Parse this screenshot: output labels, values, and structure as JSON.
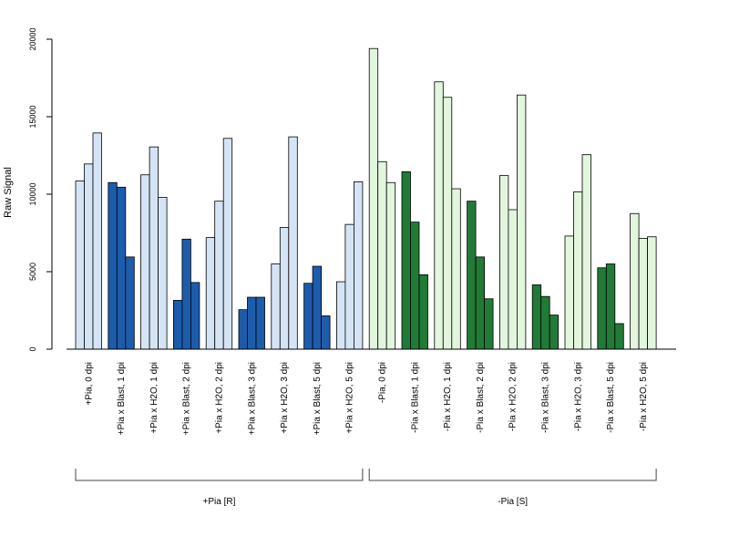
{
  "chart_data": {
    "type": "bar",
    "ylabel": "Raw Signal",
    "ylim": [
      0,
      20000
    ],
    "yticks": [
      "0",
      "5000",
      "10000",
      "15000",
      "20000"
    ],
    "categories": [
      "+Pia, 0 dpi",
      "+Pia x Blast, 1 dpi",
      "+Pia x H2O, 1 dpi",
      "+Pia x Blast, 2 dpi",
      "+Pia x H2O, 2 dpi",
      "+Pia x Blast, 3 dpi",
      "+Pia x H2O, 3 dpi",
      "+Pia x Blast, 5 dpi",
      "+Pia x H2O, 5 dpi",
      "-Pia, 0 dpi",
      "-Pia x Blast, 1 dpi",
      "-Pia x H2O, 1 dpi",
      "-Pia x Blast, 2 dpi",
      "-Pia x H2O, 2 dpi",
      "-Pia x Blast, 3 dpi",
      "-Pia x H2O, 3 dpi",
      "-Pia x Blast, 5 dpi",
      "-Pia x H2O, 5 dpi"
    ],
    "replicates": [
      [
        10850,
        11950,
        13950
      ],
      [
        10750,
        10450,
        5950
      ],
      [
        11250,
        13050,
        9800
      ],
      [
        3150,
        7100,
        4300
      ],
      [
        7200,
        9550,
        13600
      ],
      [
        2550,
        3350,
        3350
      ],
      [
        5500,
        7850,
        13700
      ],
      [
        4250,
        5350,
        2150
      ],
      [
        4350,
        8050,
        10800
      ],
      [
        19400,
        12100,
        10750
      ],
      [
        11450,
        8200,
        4800
      ],
      [
        17250,
        16250,
        10350
      ],
      [
        9550,
        5950,
        3250
      ],
      [
        11200,
        9000,
        16400
      ],
      [
        4150,
        3400,
        2200
      ],
      [
        7300,
        10150,
        12550
      ],
      [
        5250,
        5500,
        1650
      ],
      [
        8750,
        7150,
        7250
      ]
    ],
    "bar_colors": [
      "#d5e4f5",
      "#1d5cab",
      "#d5e4f5",
      "#1d5cab",
      "#d5e4f5",
      "#1d5cab",
      "#d5e4f5",
      "#1d5cab",
      "#d5e4f5",
      "#e2f5dd",
      "#217a36",
      "#e2f5dd",
      "#217a36",
      "#e2f5dd",
      "#217a36",
      "#e2f5dd",
      "#217a36",
      "#e2f5dd"
    ],
    "groups": [
      {
        "label": "+Pia [R]",
        "from": 0,
        "to": 8
      },
      {
        "label": "-Pia [S]",
        "from": 9,
        "to": 17
      }
    ]
  }
}
